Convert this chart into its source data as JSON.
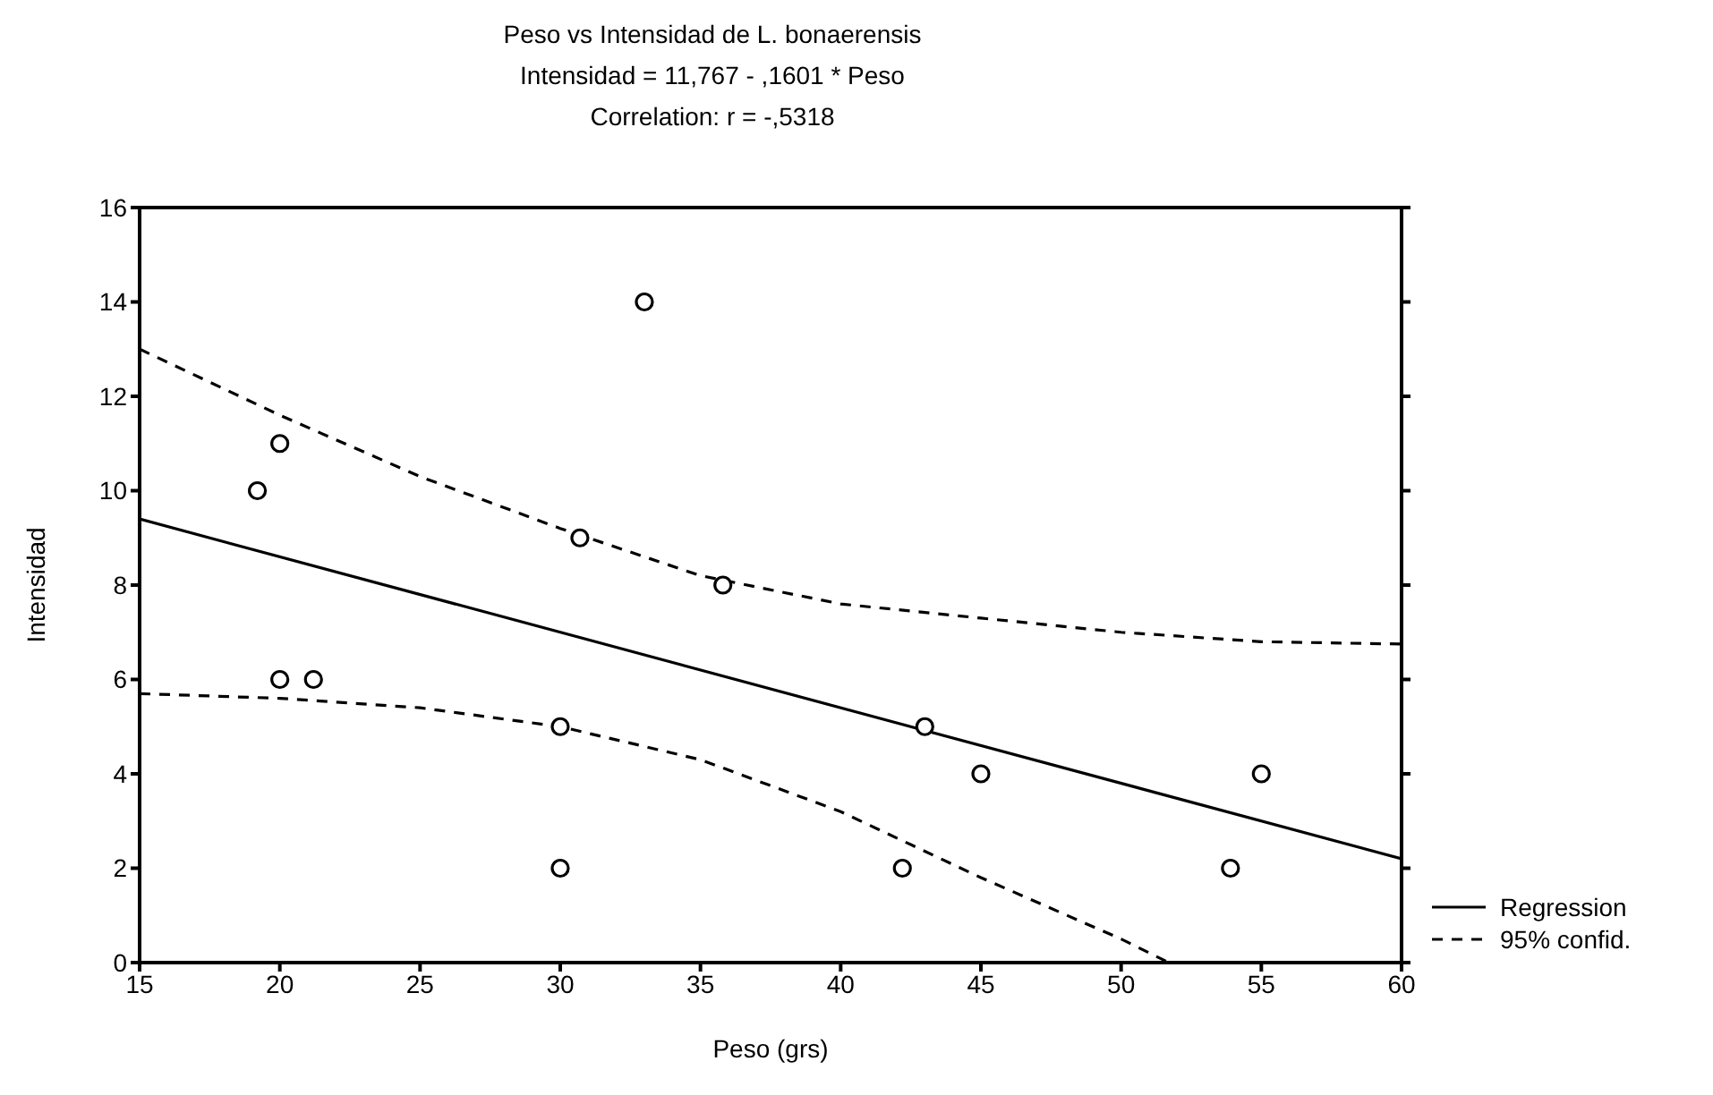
{
  "chart_data": {
    "type": "scatter",
    "title": "Peso vs Intensidad de L. bonaerensis",
    "subtitle": "Intensidad = 11,767 - ,1601 * Peso",
    "annotations": [
      "Correlation: r = -,5318"
    ],
    "xlabel": "Peso (grs)",
    "ylabel": "Intensidad",
    "xlim": [
      15,
      60
    ],
    "xticks": [
      15,
      20,
      25,
      30,
      35,
      40,
      45,
      50,
      55,
      60
    ],
    "ylim": [
      0,
      16
    ],
    "yticks": [
      0,
      2,
      4,
      6,
      8,
      10,
      12,
      14,
      16
    ],
    "grid": false,
    "legend": "right",
    "series": [
      {
        "marker": "circle",
        "color": "#000000",
        "x": [
          19.2,
          20,
          20,
          21.2,
          30,
          30,
          30.7,
          33,
          35.8,
          42.2,
          43,
          45,
          53.9,
          55
        ],
        "values": [
          10,
          11,
          6,
          6,
          5,
          2,
          9,
          14,
          8,
          2,
          5,
          4,
          2,
          4
        ]
      },
      {
        "type": "line",
        "name": "Regression",
        "marker": "none",
        "line_style": "solid",
        "color": "#000000",
        "x": [
          15,
          60
        ],
        "values": [
          9.4,
          2.2
        ]
      },
      {
        "type": "line",
        "name": "95% confid.",
        "marker": "none",
        "line_style": "dashed",
        "color": "#000000",
        "x": [
          15,
          20,
          25,
          30,
          35,
          40,
          45,
          50,
          55,
          60
        ],
        "values": [
          13,
          11.6,
          10.3,
          9.2,
          8.2,
          7.6,
          7.3,
          7,
          6.8,
          6.75
        ]
      },
      {
        "type": "line",
        "marker": "none",
        "line_style": "dashed",
        "color": "#000000",
        "x": [
          15,
          20,
          25,
          30,
          35,
          40,
          45,
          50,
          51.7
        ],
        "values": [
          5.7,
          5.6,
          5.4,
          5,
          4.3,
          3.2,
          1.8,
          0.5,
          0
        ]
      }
    ]
  }
}
